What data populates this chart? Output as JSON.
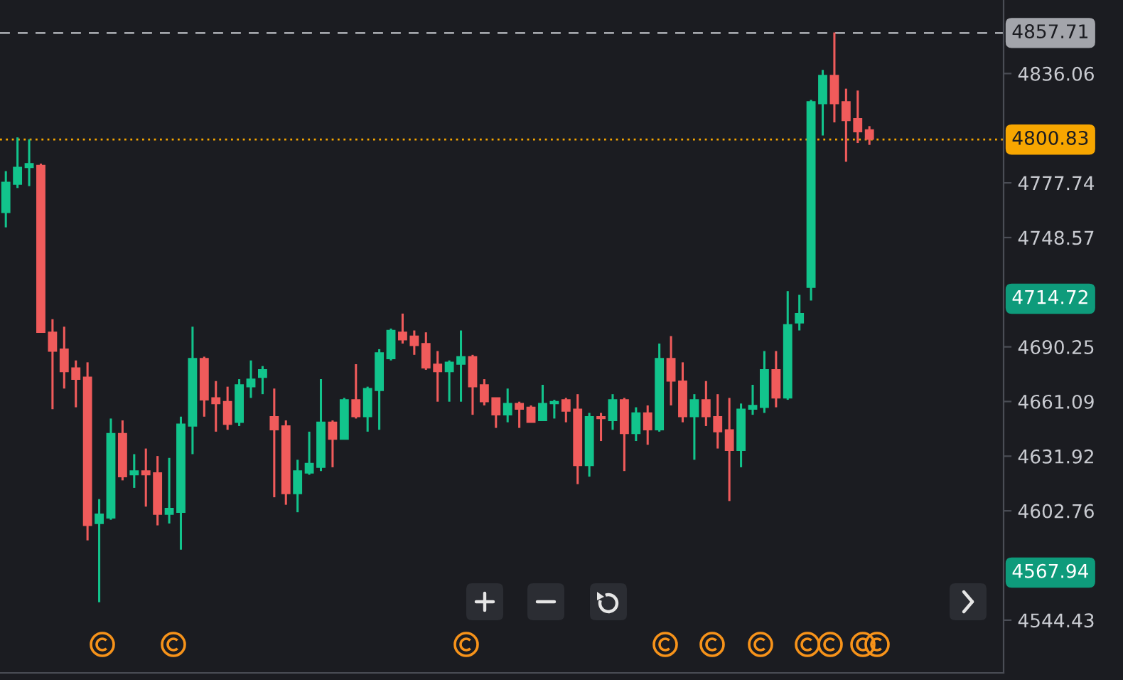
{
  "chart_data": {
    "type": "candlestick",
    "categories": [
      null,
      null,
      null,
      null,
      null,
      null,
      null,
      null,
      null,
      null,
      null,
      null,
      null,
      null,
      null,
      null,
      null,
      null,
      null,
      null,
      null,
      null,
      null,
      null,
      null,
      null,
      null,
      null,
      null,
      null,
      null,
      null,
      null,
      null,
      null,
      null,
      null,
      null,
      null,
      null,
      null,
      null,
      null,
      null,
      null,
      null,
      null,
      null,
      null,
      null,
      null,
      null,
      null,
      null,
      null,
      null,
      null,
      null,
      null,
      null,
      null,
      null,
      null,
      null,
      null,
      null,
      null,
      null,
      null,
      null,
      null,
      null,
      null,
      null,
      null,
      null,
      null,
      null,
      null,
      null,
      null,
      null,
      null,
      null,
      null,
      null
    ],
    "ohlc": [
      [
        4762,
        4784,
        4754,
        4778
      ],
      [
        4777,
        4802,
        4775,
        4786
      ],
      [
        4786,
        4801,
        4776,
        4788
      ],
      [
        4787,
        4788,
        4698,
        4698
      ],
      [
        4698,
        4705,
        4657,
        4688
      ],
      [
        4689,
        4701,
        4668,
        4677
      ],
      [
        4679,
        4683,
        4658,
        4673
      ],
      [
        4674,
        4682,
        4587,
        4595
      ],
      [
        4596,
        4609,
        4554,
        4601
      ],
      [
        4599,
        4652,
        4598,
        4644
      ],
      [
        4644,
        4651,
        4619,
        4621
      ],
      [
        4622,
        4633,
        4615,
        4624
      ],
      [
        4624,
        4636,
        4605,
        4622
      ],
      [
        4623,
        4632,
        4595,
        4601
      ],
      [
        4601,
        4631,
        4596,
        4604
      ],
      [
        4602,
        4653,
        4582,
        4649
      ],
      [
        4648,
        4701,
        4633,
        4684
      ],
      [
        4684,
        4685,
        4653,
        4662
      ],
      [
        4663,
        4672,
        4645,
        4660
      ],
      [
        4661,
        4669,
        4646,
        4649
      ],
      [
        4650,
        4673,
        4648,
        4670
      ],
      [
        4669,
        4683,
        4663,
        4673
      ],
      [
        4674,
        4680,
        4665,
        4678
      ],
      [
        4653,
        4668,
        4610,
        4646
      ],
      [
        4648,
        4651,
        4606,
        4612
      ],
      [
        4612,
        4630,
        4602,
        4624
      ],
      [
        4623,
        4645,
        4622,
        4628
      ],
      [
        4626,
        4673,
        4624,
        4650
      ],
      [
        4650,
        4651,
        4626,
        4641
      ],
      [
        4641,
        4663,
        4641,
        4662
      ],
      [
        4662,
        4681,
        4652,
        4653
      ],
      [
        4653,
        4669,
        4645,
        4668
      ],
      [
        4667,
        4689,
        4646,
        4687
      ],
      [
        4684,
        4700,
        4683,
        4699
      ],
      [
        4698,
        4708,
        4692,
        4694
      ],
      [
        4696,
        4699,
        4686,
        4691
      ],
      [
        4692,
        4698,
        4678,
        4679
      ],
      [
        4681,
        4688,
        4661,
        4677
      ],
      [
        4677,
        4683,
        4661,
        4682
      ],
      [
        4681,
        4699,
        4661,
        4685
      ],
      [
        4685,
        4686,
        4654,
        4669
      ],
      [
        4670,
        4673,
        4659,
        4661
      ],
      [
        4663,
        4663,
        4647,
        4654
      ],
      [
        4654,
        4668,
        4650,
        4660
      ],
      [
        4660,
        4661,
        4647,
        4657
      ],
      [
        4658,
        4659,
        4650,
        4650
      ],
      [
        4651,
        4670,
        4651,
        4660
      ],
      [
        4660,
        4662,
        4652,
        4661
      ],
      [
        4662,
        4663,
        4650,
        4656
      ],
      [
        4657,
        4665,
        4617,
        4627
      ],
      [
        4627,
        4655,
        4621,
        4653
      ],
      [
        4653,
        4655,
        4640,
        4652
      ],
      [
        4651,
        4665,
        4646,
        4662
      ],
      [
        4662,
        4663,
        4624,
        4644
      ],
      [
        4644,
        4658,
        4640,
        4655
      ],
      [
        4655,
        4659,
        4638,
        4646
      ],
      [
        4646,
        4692,
        4645,
        4684
      ],
      [
        4684,
        4696,
        4659,
        4672
      ],
      [
        4672,
        4682,
        4650,
        4653
      ],
      [
        4653,
        4665,
        4630,
        4662
      ],
      [
        4662,
        4672,
        4648,
        4653
      ],
      [
        4653,
        4665,
        4636,
        4645
      ],
      [
        4646,
        4663,
        4608,
        4635
      ],
      [
        4635,
        4660,
        4626,
        4657
      ],
      [
        4657,
        4670,
        4654,
        4659
      ],
      [
        4658,
        4688,
        4655,
        4678
      ],
      [
        4678,
        4688,
        4658,
        4663
      ],
      [
        4663,
        4720,
        4662,
        4702
      ],
      [
        4703,
        4718,
        4699,
        4708
      ],
      [
        4722,
        4822,
        4715,
        4821
      ],
      [
        4820,
        4838,
        4803,
        4835
      ],
      [
        4835,
        4858,
        4810,
        4820
      ],
      [
        4821,
        4828,
        4789,
        4811
      ],
      [
        4812,
        4827,
        4799,
        4805
      ],
      [
        4806,
        4808,
        4798,
        4801
      ],
      null,
      null,
      null,
      null,
      null,
      null,
      null,
      null,
      null,
      null,
      null
    ],
    "colors": [
      "#12c48c",
      "#12c48c",
      "#12c48c",
      "#f05b5b",
      "#f05b5b",
      "#f05b5b",
      "#f05b5b",
      "#f05b5b",
      "#12c48c",
      "#12c48c",
      "#f05b5b",
      "#12c48c",
      "#f05b5b",
      "#f05b5b",
      "#12c48c",
      "#12c48c",
      "#12c48c",
      "#f05b5b",
      "#f05b5b",
      "#f05b5b",
      "#12c48c",
      "#12c48c",
      "#12c48c",
      "#f05b5b",
      "#f05b5b",
      "#12c48c",
      "#12c48c",
      "#12c48c",
      "#f05b5b",
      "#12c48c",
      "#f05b5b",
      "#12c48c",
      "#12c48c",
      "#12c48c",
      "#f05b5b",
      "#f05b5b",
      "#f05b5b",
      "#f05b5b",
      "#12c48c",
      "#12c48c",
      "#f05b5b",
      "#f05b5b",
      "#f05b5b",
      "#12c48c",
      "#f05b5b",
      "#f05b5b",
      "#12c48c",
      "#12c48c",
      "#f05b5b",
      "#f05b5b",
      "#12c48c",
      "#f05b5b",
      "#12c48c",
      "#f05b5b",
      "#12c48c",
      "#f05b5b",
      "#12c48c",
      "#f05b5b",
      "#f05b5b",
      "#12c48c",
      "#f05b5b",
      "#f05b5b",
      "#f05b5b",
      "#12c48c",
      "#12c48c",
      "#12c48c",
      "#f05b5b",
      "#12c48c",
      "#12c48c",
      "#12c48c",
      "#12c48c",
      "#f05b5b",
      "#f05b5b",
      "#f05b5b",
      "#f05b5b",
      null,
      null,
      null,
      null,
      null,
      null,
      null,
      null,
      null,
      null,
      null
    ],
    "ylim": [
      4516.3,
      4875.3
    ],
    "yticks": [
      4544.43,
      4602.76,
      4631.92,
      4661.09,
      4690.25,
      4748.57,
      4777.74,
      4836.06
    ],
    "tick_labels": "y",
    "ref_lines": [
      {
        "axis": "y",
        "value": 4857.71,
        "label": "4857.71",
        "color": "#a3a5ab",
        "line_style": "dashed"
      },
      {
        "axis": "y",
        "value": 4800.83,
        "label": "4800.83",
        "color": "#f7a600",
        "line_style": "dotted"
      }
    ],
    "annotations": [
      "4714.72",
      "4567.94"
    ]
  }
}
